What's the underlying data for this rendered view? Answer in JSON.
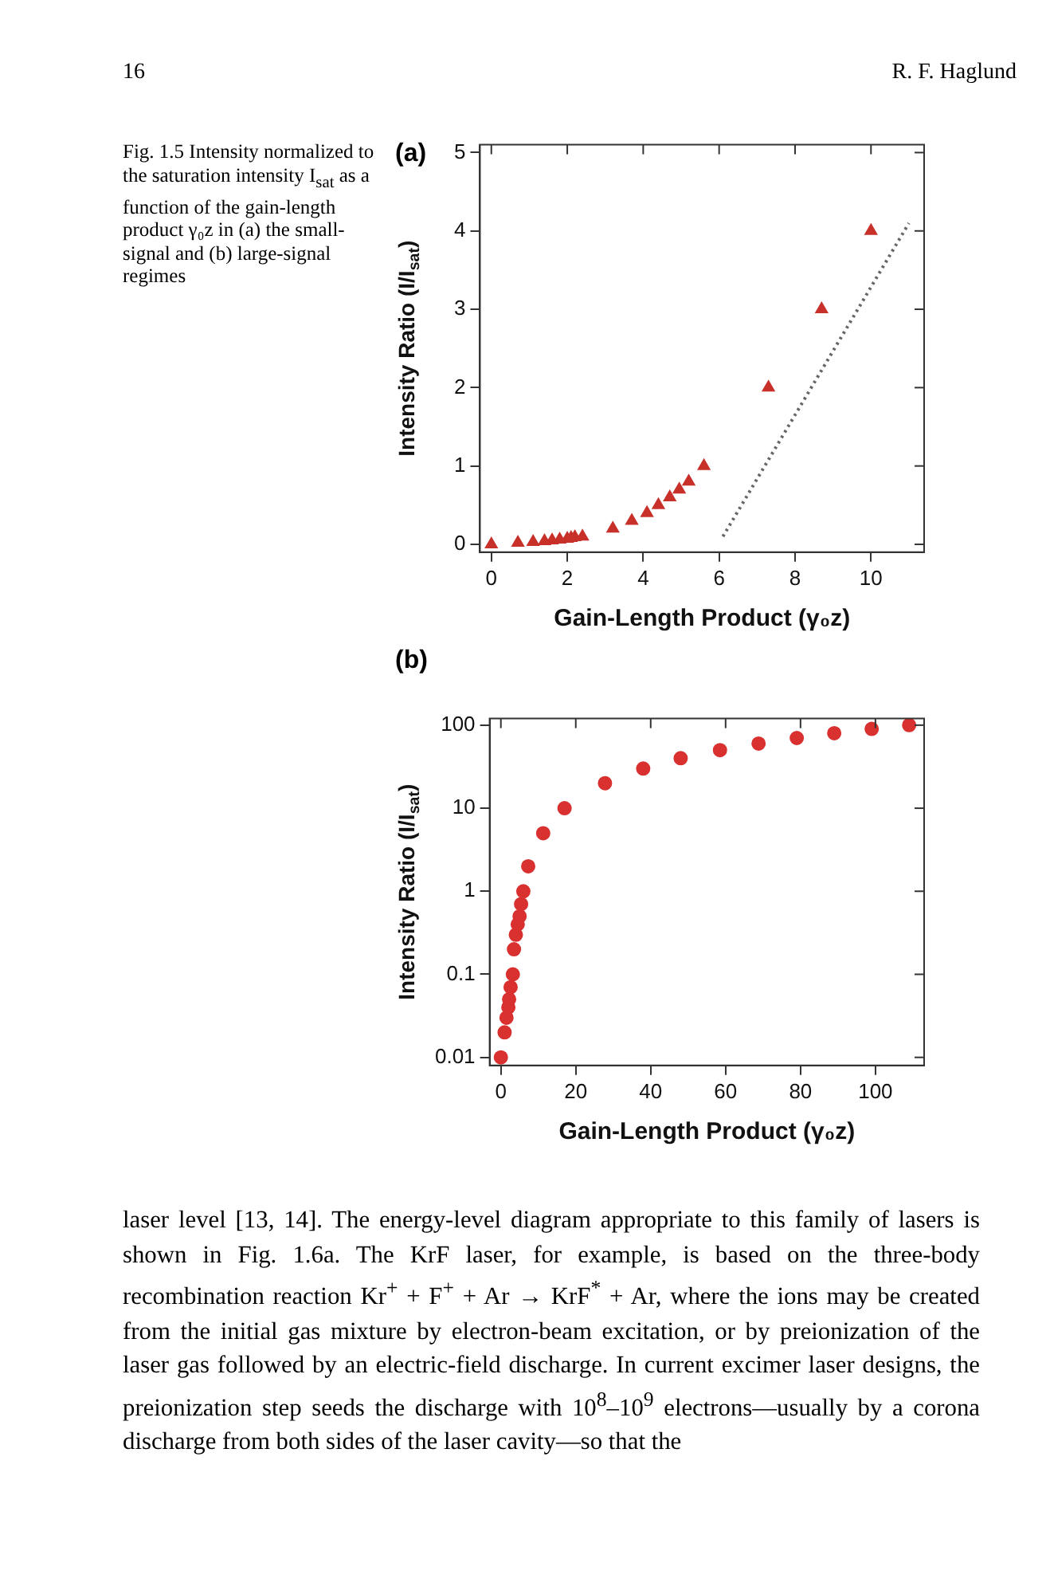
{
  "chart_data": [
    {
      "type": "scatter",
      "xlabel": "Gain-Length Product (γ₀z)",
      "ylabel": "Intensity Ratio (I/I$_{sat}$)",
      "xlim": [
        -0.3,
        11.4
      ],
      "ylim": [
        -0.1,
        5.1
      ],
      "xticks": [
        0,
        2,
        4,
        6,
        8,
        10
      ],
      "yticks": [
        0,
        1,
        2,
        3,
        4,
        5
      ],
      "grid": false,
      "legend": false,
      "marker": "triangle",
      "annotations": [
        "16",
        "R. F. Haglund",
        "Fig. 1.5 Intensity normalized to the saturation intensity I$_{sat}$ as a function of the gain-length product γ₀z in (a) the small-signal and (b) large-signal regimes",
        "(a)"
      ],
      "series": [
        {
          "color": "#c8302a",
          "x": [
            0,
            0.7,
            1.1,
            1.4,
            1.6,
            1.8,
            2.0,
            2.1,
            2.2,
            2.4,
            3.2,
            3.7,
            4.1,
            4.4,
            4.7,
            4.95,
            5.2,
            5.6,
            7.3,
            8.7,
            10
          ],
          "values": [
            0,
            0.02,
            0.03,
            0.04,
            0.05,
            0.06,
            0.07,
            0.08,
            0.09,
            0.1,
            0.2,
            0.3,
            0.4,
            0.5,
            0.6,
            0.7,
            0.8,
            1,
            2,
            3,
            4
          ]
        },
        {
          "type": "line",
          "color": "#666666",
          "line_style": "dotted",
          "marker": "none",
          "x": [
            6.1,
            11
          ],
          "values": [
            0.1,
            4.1
          ]
        }
      ]
    },
    {
      "type": "scatter",
      "xlabel": "Gain-Length Product (γ₀z)",
      "ylabel": "Intensity Ratio (I/I$_{sat}$)",
      "xlim": [
        -3,
        113
      ],
      "ylim": [
        0.008,
        120
      ],
      "xticks": [
        0,
        20,
        40,
        60,
        80,
        100
      ],
      "yticks": [
        0.01,
        0.1,
        1,
        10,
        100
      ],
      "log": "y",
      "grid": false,
      "legend": false,
      "marker": "circle",
      "annotations": [
        "(b)",
        "laser level [13, 14]. The energy-level diagram appropriate to this family of lasers is shown in Fig. 1.6a. The KrF laser, for example, is based on the three-body recombination reaction Kr$^{+}$ + F$^{+}$ + Ar → KrF$^{*}$ + Ar, where the ions may be created from the initial gas mixture by electron-beam excitation, or by preionization of the laser gas followed by an electric-field discharge. In current excimer laser designs, the preionization step seeds the discharge with 10$^{8}$–10$^{9}$ electrons—usually by a corona discharge from both sides of the laser cavity—so that the"
      ],
      "series": [
        {
          "color": "#d93030",
          "x": [
            0,
            1,
            1.5,
            2,
            2.2,
            2.6,
            3.2,
            3.5,
            4,
            4.5,
            5,
            5.4,
            6,
            7.3,
            11.3,
            17,
            27.8,
            38,
            48,
            58.5,
            68.8,
            79,
            89,
            99,
            109
          ],
          "values": [
            0.01,
            0.02,
            0.03,
            0.04,
            0.05,
            0.07,
            0.1,
            0.2,
            0.3,
            0.4,
            0.5,
            0.7,
            1,
            2,
            5,
            10,
            20,
            30,
            40,
            50,
            60,
            70,
            80,
            90,
            100
          ]
        }
      ]
    }
  ]
}
